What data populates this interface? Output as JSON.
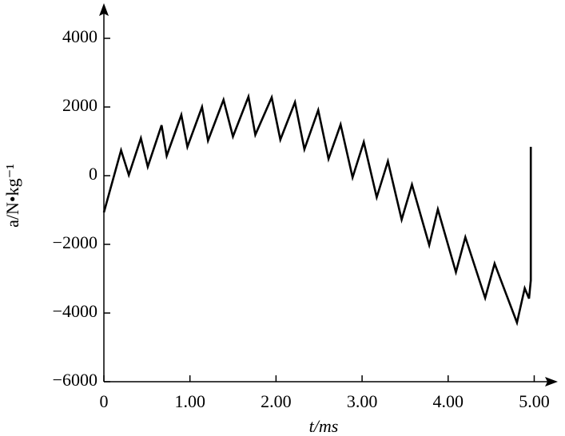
{
  "chart_data": {
    "type": "line",
    "xlabel": "t/ms",
    "ylabel": "a/N•kg⁻¹",
    "x": [
      0,
      0.2,
      0.29,
      0.43,
      0.51,
      0.67,
      0.73,
      0.9,
      0.97,
      1.14,
      1.21,
      1.39,
      1.5,
      1.68,
      1.76,
      1.95,
      2.05,
      2.22,
      2.33,
      2.49,
      2.61,
      2.75,
      2.89,
      3.02,
      3.17,
      3.3,
      3.46,
      3.58,
      3.78,
      3.88,
      4.09,
      4.2,
      4.43,
      4.54,
      4.8,
      4.89,
      4.94,
      4.96,
      4.96
    ],
    "series": [
      {
        "color": "#000000",
        "values": [
          -1070,
          740,
          20,
          1090,
          260,
          1470,
          580,
          1770,
          840,
          2000,
          1020,
          2210,
          1140,
          2300,
          1190,
          2280,
          1050,
          2140,
          770,
          1910,
          490,
          1490,
          -50,
          980,
          -630,
          420,
          -1280,
          -260,
          -2020,
          -980,
          -2810,
          -1790,
          -3560,
          -2560,
          -4280,
          -3280,
          -3580,
          -3050,
          840
        ]
      }
    ],
    "xlim": [
      0,
      5.25
    ],
    "ylim": [
      -6000,
      4800
    ],
    "xticks": [
      0,
      {
        "value": 1,
        "label": "1.00"
      },
      {
        "value": 2,
        "label": "2.00"
      },
      {
        "value": 3,
        "label": "3.00"
      },
      {
        "value": 4,
        "label": "4.00"
      },
      {
        "value": 5,
        "label": "5.00"
      }
    ],
    "yticks": [
      {
        "value": -6000,
        "label": "−6000"
      },
      {
        "value": -4000,
        "label": "−4000"
      },
      {
        "value": -2000,
        "label": "−2000"
      },
      0,
      2000,
      4000
    ]
  }
}
